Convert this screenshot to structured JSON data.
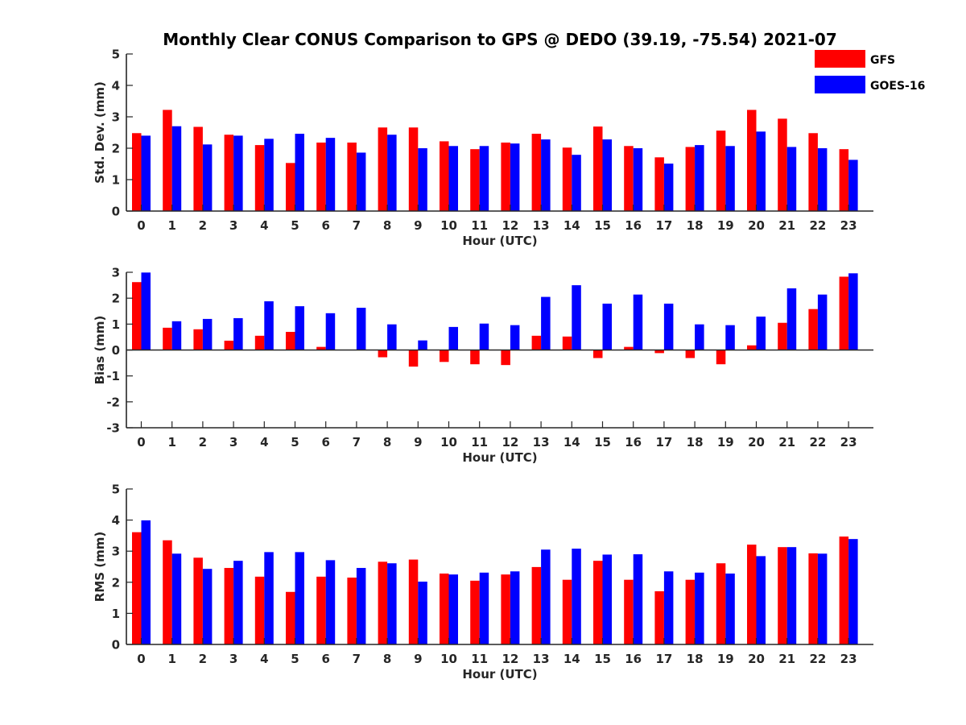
{
  "title": "Monthly Clear CONUS Comparison to GPS @ DEDO (39.19, -75.54) 2021-07",
  "colors": {
    "GFS": "#ff0000",
    "GOES-16": "#0000ff",
    "axis": "#262626"
  },
  "legend": {
    "placement": "top-right",
    "items": [
      "GFS",
      "GOES-16"
    ]
  },
  "chart_data": [
    {
      "type": "bar",
      "categories": [
        "0",
        "1",
        "2",
        "3",
        "4",
        "5",
        "6",
        "7",
        "8",
        "9",
        "10",
        "11",
        "12",
        "13",
        "14",
        "15",
        "16",
        "17",
        "18",
        "19",
        "20",
        "21",
        "22",
        "23"
      ],
      "xlabel": "Hour (UTC)",
      "ylabel": "Std. Dev. (mm)",
      "ylim": [
        0,
        5
      ],
      "yticks": [
        "0",
        "1",
        "2",
        "3",
        "4",
        "5"
      ],
      "series": [
        {
          "name": "GFS",
          "values": [
            2.48,
            3.22,
            2.68,
            2.43,
            2.1,
            1.53,
            2.18,
            2.18,
            2.66,
            2.66,
            2.22,
            1.97,
            2.18,
            2.46,
            2.02,
            2.69,
            2.07,
            1.71,
            2.04,
            2.56,
            3.22,
            2.94,
            2.48,
            1.97
          ]
        },
        {
          "name": "GOES-16",
          "values": [
            2.4,
            2.7,
            2.12,
            2.4,
            2.3,
            2.46,
            2.33,
            1.86,
            2.43,
            2.0,
            2.07,
            2.07,
            2.15,
            2.28,
            1.79,
            2.28,
            2.0,
            1.51,
            2.1,
            2.07,
            2.53,
            2.04,
            2.0,
            1.63
          ]
        }
      ]
    },
    {
      "type": "bar",
      "categories": [
        "0",
        "1",
        "2",
        "3",
        "4",
        "5",
        "6",
        "7",
        "8",
        "9",
        "10",
        "11",
        "12",
        "13",
        "14",
        "15",
        "16",
        "17",
        "18",
        "19",
        "20",
        "21",
        "22",
        "23"
      ],
      "xlabel": "Hour (UTC)",
      "ylabel": "Bias (mm)",
      "ylim": [
        -3,
        3
      ],
      "yticks": [
        "-3",
        "-2",
        "-1",
        "0",
        "1",
        "2",
        "3"
      ],
      "series": [
        {
          "name": "GFS",
          "values": [
            2.62,
            0.86,
            0.8,
            0.36,
            0.55,
            0.7,
            0.12,
            0.0,
            -0.28,
            -0.64,
            -0.46,
            -0.55,
            -0.58,
            0.55,
            0.52,
            -0.31,
            0.12,
            -0.12,
            -0.31,
            -0.55,
            0.18,
            1.05,
            1.58,
            2.83
          ]
        },
        {
          "name": "GOES-16",
          "values": [
            2.99,
            1.11,
            1.2,
            1.23,
            1.88,
            1.69,
            1.42,
            1.63,
            0.99,
            0.37,
            0.89,
            1.02,
            0.96,
            2.05,
            2.5,
            1.79,
            2.14,
            1.79,
            0.99,
            0.96,
            1.29,
            2.38,
            2.14,
            2.96
          ]
        }
      ]
    },
    {
      "type": "bar",
      "categories": [
        "0",
        "1",
        "2",
        "3",
        "4",
        "5",
        "6",
        "7",
        "8",
        "9",
        "10",
        "11",
        "12",
        "13",
        "14",
        "15",
        "16",
        "17",
        "18",
        "19",
        "20",
        "21",
        "22",
        "23"
      ],
      "xlabel": "Hour (UTC)",
      "ylabel": "RMS (mm)",
      "ylim": [
        0,
        5
      ],
      "yticks": [
        "0",
        "1",
        "2",
        "3",
        "4",
        "5"
      ],
      "series": [
        {
          "name": "GFS",
          "values": [
            3.61,
            3.35,
            2.79,
            2.46,
            2.18,
            1.69,
            2.18,
            2.15,
            2.66,
            2.73,
            2.28,
            2.05,
            2.25,
            2.49,
            2.08,
            2.69,
            2.08,
            1.71,
            2.08,
            2.61,
            3.21,
            3.13,
            2.93,
            3.47
          ]
        },
        {
          "name": "GOES-16",
          "values": [
            3.99,
            2.92,
            2.43,
            2.69,
            2.97,
            2.97,
            2.71,
            2.46,
            2.61,
            2.02,
            2.25,
            2.31,
            2.35,
            3.05,
            3.08,
            2.89,
            2.9,
            2.35,
            2.31,
            2.28,
            2.84,
            3.13,
            2.92,
            3.39
          ]
        }
      ]
    }
  ]
}
